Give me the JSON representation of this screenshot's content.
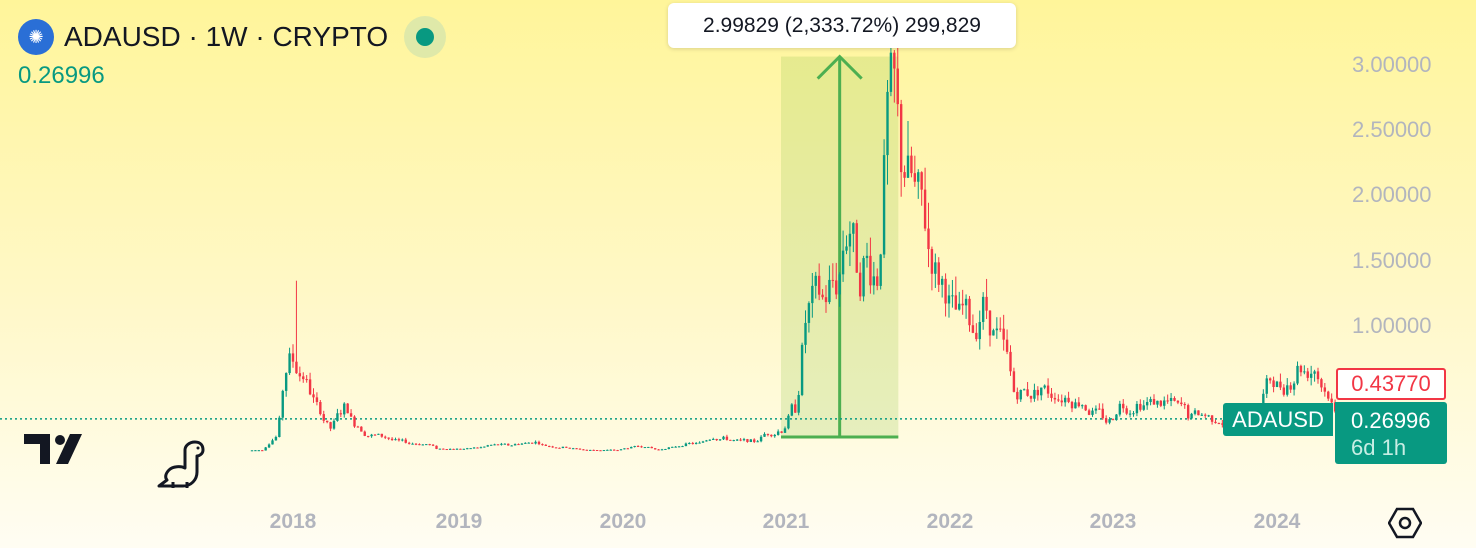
{
  "header": {
    "symbol_title": "ADAUSD · 1W · CRYPTO",
    "last_price": "0.26996",
    "logo_icon": "cardano-icon",
    "status_icon": "market-open-dot"
  },
  "measure_tooltip": "2.99829 (2,333.72%) 299,829",
  "labels": {
    "high_price": "0.43770",
    "symbol": "ADAUSD",
    "current_price": "0.26996",
    "countdown": "6d 1h"
  },
  "colors": {
    "up": "#089981",
    "down": "#f23645",
    "measure": "#4caf50"
  },
  "chart_data": {
    "type": "candlestick",
    "ylim": [
      0,
      3.1
    ],
    "y_ticks": [
      "1.00000",
      "1.50000",
      "2.00000",
      "2.50000",
      "3.00000"
    ],
    "x_ticks": [
      "2018",
      "2019",
      "2020",
      "2021",
      "2022",
      "2023",
      "2024"
    ],
    "start": "2017-10",
    "closes": [
      0.03,
      0.13,
      0.72,
      0.6,
      0.38,
      0.2,
      0.35,
      0.22,
      0.14,
      0.13,
      0.1,
      0.08,
      0.075,
      0.04,
      0.04,
      0.04,
      0.05,
      0.07,
      0.07,
      0.08,
      0.09,
      0.06,
      0.05,
      0.04,
      0.03,
      0.03,
      0.03,
      0.05,
      0.06,
      0.03,
      0.05,
      0.07,
      0.08,
      0.13,
      0.12,
      0.1,
      0.1,
      0.16,
      0.18,
      0.36,
      1.09,
      1.19,
      1.33,
      1.73,
      1.37,
      1.38,
      2.75,
      2.21,
      1.96,
      1.55,
      1.31,
      1.04,
      0.96,
      1.14,
      0.87,
      0.51,
      0.48,
      0.5,
      0.46,
      0.44,
      0.4,
      0.31,
      0.25,
      0.38,
      0.36,
      0.39,
      0.39,
      0.37,
      0.28,
      0.3,
      0.26,
      0.25,
      0.29,
      0.38,
      0.59,
      0.52,
      0.68,
      0.65,
      0.46,
      0.27
    ],
    "highs_notable": {
      "2018-01": 1.33,
      "2021-09": 3.1
    },
    "current_price": 0.26996,
    "measure": {
      "from": "2021-01",
      "to": "2021-09",
      "change": "2.99829",
      "percent": "2,333.72%"
    }
  }
}
